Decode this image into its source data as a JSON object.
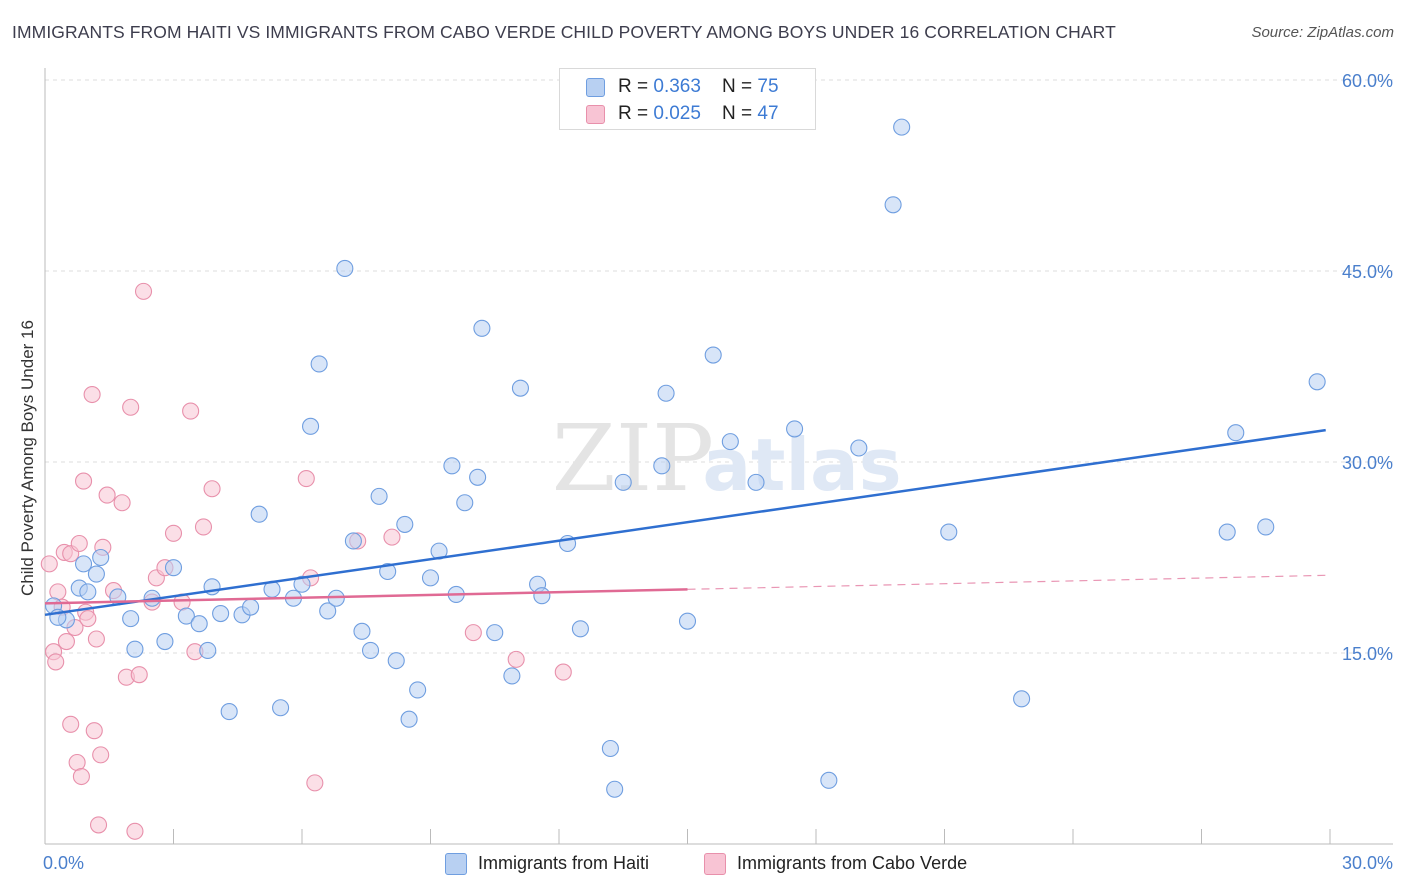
{
  "title": "IMMIGRANTS FROM HAITI VS IMMIGRANTS FROM CABO VERDE CHILD POVERTY AMONG BOYS UNDER 16 CORRELATION CHART",
  "source": "Source: ZipAtlas.com",
  "watermark": {
    "zip": "ZIP",
    "atlas": "atlas"
  },
  "legend_top": [
    {
      "r_label": "R = ",
      "r_value": "0.363",
      "n_label": "N = ",
      "n_value": "75"
    },
    {
      "r_label": "R = ",
      "r_value": "0.025",
      "n_label": "N = ",
      "n_value": "47"
    }
  ],
  "colors": {
    "haiti_fill": "#b8d0f2",
    "haiti_stroke": "#6f9ee0",
    "haiti_line": "#2f6fd0",
    "cabo_fill": "#f8c4d4",
    "cabo_stroke": "#e890ab",
    "cabo_line": "#e06a94",
    "axis_text": "#4a7fcc",
    "grid": "#dcdcdc"
  },
  "chart_data": {
    "type": "scatter",
    "title": "IMMIGRANTS FROM HAITI VS IMMIGRANTS FROM CABO VERDE CHILD POVERTY AMONG BOYS UNDER 16 CORRELATION CHART",
    "xlabel": "",
    "ylabel": "Child Poverty Among Boys Under 16",
    "xlim": [
      0,
      30
    ],
    "ylim": [
      0,
      60
    ],
    "x_tick_labels": [
      "0.0%",
      "30.0%"
    ],
    "y_ticks": [
      15,
      30,
      45,
      60
    ],
    "y_tick_labels": [
      "15.0%",
      "30.0%",
      "45.0%",
      "60.0%"
    ],
    "series": [
      {
        "name": "Immigrants from Haiti",
        "r": 0.363,
        "n": 75,
        "trend": {
          "x": [
            0,
            29.9
          ],
          "y": [
            18.0,
            32.5
          ]
        },
        "points": [
          [
            0.2,
            18.7
          ],
          [
            0.5,
            17.6
          ],
          [
            0.8,
            20.1
          ],
          [
            0.9,
            22.0
          ],
          [
            1.2,
            21.2
          ],
          [
            1.3,
            22.5
          ],
          [
            1.7,
            19.4
          ],
          [
            2.0,
            17.7
          ],
          [
            2.1,
            15.3
          ],
          [
            2.5,
            19.3
          ],
          [
            2.8,
            15.9
          ],
          [
            3.0,
            21.7
          ],
          [
            3.3,
            17.9
          ],
          [
            3.6,
            17.3
          ],
          [
            3.8,
            15.2
          ],
          [
            4.1,
            18.1
          ],
          [
            4.3,
            10.4
          ],
          [
            4.6,
            18.0
          ],
          [
            4.8,
            18.6
          ],
          [
            5.0,
            25.9
          ],
          [
            5.3,
            20.0
          ],
          [
            5.5,
            10.7
          ],
          [
            5.8,
            19.3
          ],
          [
            6.0,
            20.4
          ],
          [
            6.2,
            32.8
          ],
          [
            6.4,
            37.7
          ],
          [
            6.6,
            18.3
          ],
          [
            6.8,
            19.3
          ],
          [
            7.0,
            45.2
          ],
          [
            7.2,
            23.8
          ],
          [
            7.4,
            16.7
          ],
          [
            7.6,
            15.2
          ],
          [
            7.8,
            27.3
          ],
          [
            8.0,
            21.4
          ],
          [
            8.2,
            14.4
          ],
          [
            8.4,
            25.1
          ],
          [
            8.5,
            9.8
          ],
          [
            8.7,
            12.1
          ],
          [
            9.0,
            20.9
          ],
          [
            9.2,
            23.0
          ],
          [
            9.5,
            29.7
          ],
          [
            9.6,
            19.6
          ],
          [
            9.8,
            26.8
          ],
          [
            10.1,
            28.8
          ],
          [
            10.2,
            40.5
          ],
          [
            10.5,
            16.6
          ],
          [
            10.9,
            13.2
          ],
          [
            11.1,
            35.8
          ],
          [
            11.5,
            20.4
          ],
          [
            11.6,
            19.5
          ],
          [
            12.2,
            23.6
          ],
          [
            12.5,
            16.9
          ],
          [
            13.2,
            7.5
          ],
          [
            13.3,
            4.3
          ],
          [
            13.5,
            28.4
          ],
          [
            14.4,
            29.7
          ],
          [
            14.5,
            35.4
          ],
          [
            15.0,
            17.5
          ],
          [
            15.6,
            38.4
          ],
          [
            16.0,
            31.6
          ],
          [
            16.6,
            28.4
          ],
          [
            17.5,
            32.6
          ],
          [
            18.3,
            5.0
          ],
          [
            19.0,
            31.1
          ],
          [
            19.8,
            50.2
          ],
          [
            20.0,
            56.3
          ],
          [
            21.1,
            24.5
          ],
          [
            22.8,
            11.4
          ],
          [
            27.6,
            24.5
          ],
          [
            27.8,
            32.3
          ],
          [
            28.5,
            24.9
          ],
          [
            29.7,
            36.3
          ],
          [
            0.3,
            17.8
          ],
          [
            1.0,
            19.8
          ],
          [
            3.9,
            20.2
          ]
        ]
      },
      {
        "name": "Immigrants from Cabo Verde",
        "r": 0.025,
        "n": 47,
        "trend_solid": {
          "x": [
            0,
            15
          ],
          "y": [
            18.9,
            20.0
          ]
        },
        "trend_dashed": {
          "x": [
            15,
            29.9
          ],
          "y": [
            20.0,
            21.1
          ]
        },
        "points": [
          [
            0.1,
            22.0
          ],
          [
            0.2,
            15.1
          ],
          [
            0.25,
            14.3
          ],
          [
            0.3,
            19.8
          ],
          [
            0.4,
            18.6
          ],
          [
            0.45,
            22.9
          ],
          [
            0.5,
            15.9
          ],
          [
            0.6,
            22.8
          ],
          [
            0.6,
            9.4
          ],
          [
            0.7,
            17.0
          ],
          [
            0.75,
            6.4
          ],
          [
            0.8,
            23.6
          ],
          [
            0.85,
            5.3
          ],
          [
            0.9,
            28.5
          ],
          [
            0.95,
            18.2
          ],
          [
            1.0,
            17.7
          ],
          [
            1.1,
            35.3
          ],
          [
            1.15,
            8.9
          ],
          [
            1.2,
            16.1
          ],
          [
            1.25,
            1.5
          ],
          [
            1.3,
            7.0
          ],
          [
            1.35,
            23.3
          ],
          [
            1.45,
            27.4
          ],
          [
            1.6,
            19.9
          ],
          [
            1.8,
            26.8
          ],
          [
            1.9,
            13.1
          ],
          [
            2.0,
            34.3
          ],
          [
            2.1,
            1.0
          ],
          [
            2.2,
            13.3
          ],
          [
            2.3,
            43.4
          ],
          [
            2.5,
            19.0
          ],
          [
            2.6,
            20.9
          ],
          [
            2.8,
            21.7
          ],
          [
            3.0,
            24.4
          ],
          [
            3.2,
            19.0
          ],
          [
            3.4,
            34.0
          ],
          [
            3.5,
            15.1
          ],
          [
            3.7,
            24.9
          ],
          [
            3.9,
            27.9
          ],
          [
            6.1,
            28.7
          ],
          [
            6.2,
            20.9
          ],
          [
            6.3,
            4.8
          ],
          [
            7.3,
            23.8
          ],
          [
            8.1,
            24.1
          ],
          [
            10.0,
            16.6
          ],
          [
            11.0,
            14.5
          ],
          [
            12.1,
            13.5
          ]
        ]
      }
    ]
  },
  "legend_bottom": [
    "Immigrants from Haiti",
    "Immigrants from Cabo Verde"
  ]
}
